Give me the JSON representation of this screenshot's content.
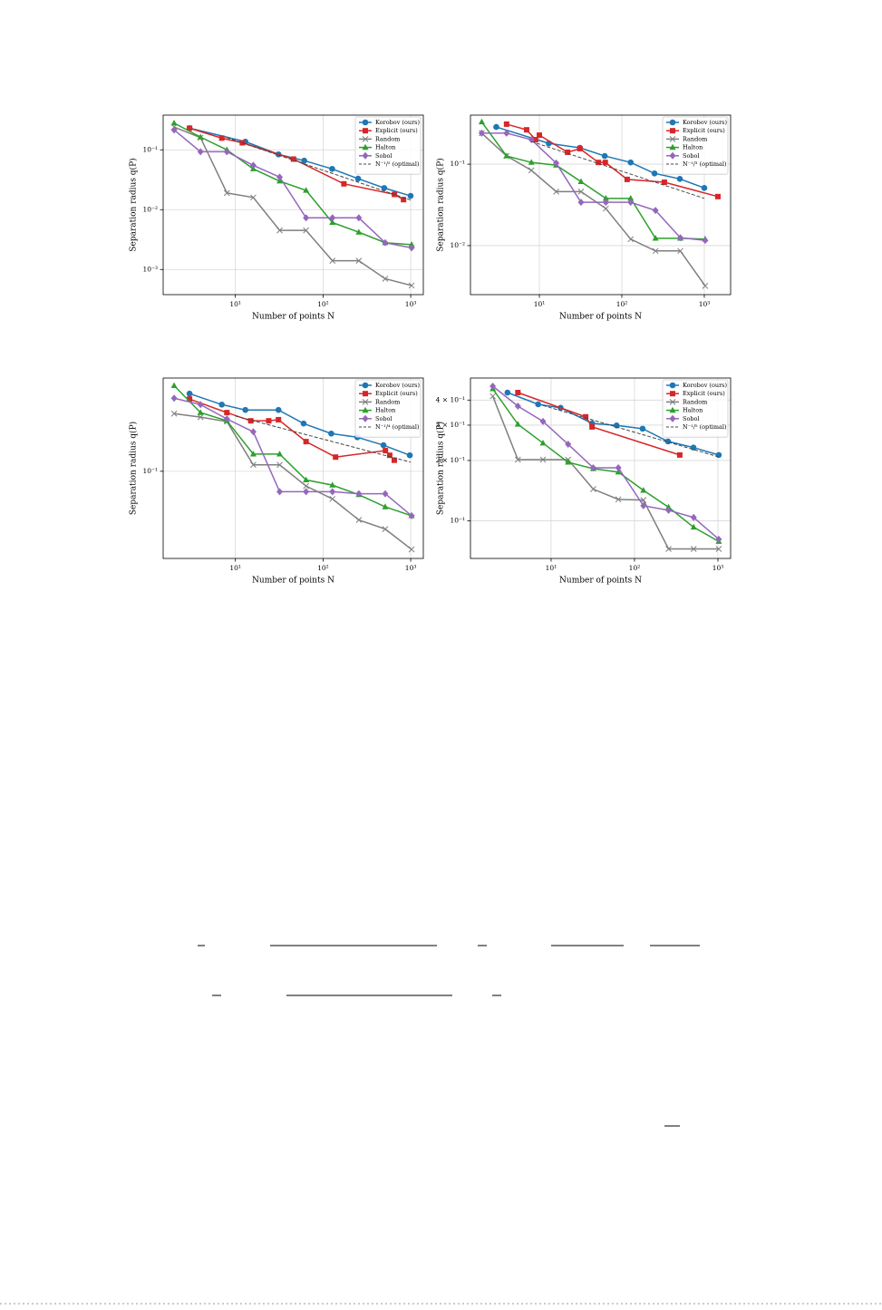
{
  "chart_data": [
    {
      "type": "line",
      "xlabel": "Number of points N",
      "ylabel": "Separation radius q(P)",
      "xscale": "log",
      "yscale": "log",
      "grid": true,
      "legend": "upper right",
      "xlim": [
        1.5,
        1393
      ],
      "ylim": [
        0.00038,
        0.38
      ],
      "xticks": [
        {
          "value": 10,
          "label": "10¹"
        },
        {
          "value": 100,
          "label": "10²"
        },
        {
          "value": 1000,
          "label": "10³"
        }
      ],
      "yticks": [
        {
          "value": 0.1,
          "label": "10⁻¹"
        },
        {
          "value": 0.01,
          "label": "10⁻²"
        },
        {
          "value": 0.001,
          "label": "10⁻³"
        }
      ],
      "series": [
        {
          "name": "Korobov (ours)",
          "color": "#1f77b4",
          "marker": "circle",
          "x": [
            3,
            13,
            31,
            61,
            127,
            251,
            499,
            997
          ],
          "values": [
            0.23,
            0.137,
            0.084,
            0.066,
            0.048,
            0.033,
            0.023,
            0.017
          ]
        },
        {
          "name": "Explicit (ours)",
          "color": "#d62728",
          "marker": "square",
          "x": [
            3,
            7,
            12,
            46,
            173,
            652,
            828
          ],
          "values": [
            0.23,
            0.157,
            0.131,
            0.07,
            0.027,
            0.018,
            0.0147
          ]
        },
        {
          "name": "Random",
          "color": "#7f7f7f",
          "marker": "x",
          "x": [
            2,
            4,
            8,
            16,
            32,
            64,
            128,
            256,
            512,
            1024
          ],
          "values": [
            0.24,
            0.16,
            0.019,
            0.016,
            0.0045,
            0.0045,
            0.0014,
            0.0014,
            0.0007,
            0.00054
          ]
        },
        {
          "name": "Halton",
          "color": "#2ca02c",
          "marker": "triangle",
          "x": [
            2,
            4,
            8,
            16,
            32,
            64,
            128,
            256,
            512,
            1024
          ],
          "values": [
            0.28,
            0.163,
            0.1,
            0.048,
            0.03,
            0.021,
            0.0061,
            0.0042,
            0.0028,
            0.0026
          ]
        },
        {
          "name": "Sobol",
          "color": "#9467bd",
          "marker": "diamond",
          "x": [
            2,
            4,
            8,
            16,
            32,
            64,
            128,
            256,
            512,
            1024
          ],
          "values": [
            0.215,
            0.093,
            0.093,
            0.055,
            0.035,
            0.0073,
            0.0073,
            0.0073,
            0.0028,
            0.0023
          ]
        },
        {
          "name": "N⁻¹/² (optimal)",
          "color": "#444444",
          "dash": true,
          "x": [
            8,
            1000
          ],
          "values": [
            0.16,
            0.0145
          ]
        }
      ]
    },
    {
      "type": "line",
      "xlabel": "Number of points N",
      "ylabel": "Separation radius q(P)",
      "xscale": "log",
      "yscale": "log",
      "grid": true,
      "legend": "upper right",
      "xlim": [
        1.46,
        2085
      ],
      "ylim": [
        0.0025,
        0.4
      ],
      "xticks": [
        {
          "value": 10,
          "label": "10¹"
        },
        {
          "value": 100,
          "label": "10²"
        },
        {
          "value": 1000,
          "label": "10³"
        }
      ],
      "yticks": [
        {
          "value": 0.1,
          "label": "10⁻¹"
        },
        {
          "value": 0.01,
          "label": "10⁻²"
        }
      ],
      "series": [
        {
          "name": "Korobov (ours)",
          "color": "#1f77b4",
          "marker": "circle",
          "x": [
            3,
            13,
            31,
            62,
            128,
            249,
            505,
            1000
          ],
          "values": [
            0.286,
            0.18,
            0.159,
            0.126,
            0.105,
            0.077,
            0.066,
            0.051
          ]
        },
        {
          "name": "Explicit (ours)",
          "color": "#d62728",
          "marker": "square",
          "x": [
            4,
            7,
            9,
            10,
            22,
            31,
            52,
            63,
            116,
            328,
            1462
          ],
          "values": [
            0.31,
            0.264,
            0.2,
            0.227,
            0.14,
            0.155,
            0.105,
            0.105,
            0.065,
            0.06,
            0.04
          ]
        },
        {
          "name": "Random",
          "color": "#7f7f7f",
          "marker": "x",
          "x": [
            2,
            4,
            8,
            16,
            32,
            64,
            128,
            256,
            512,
            1024
          ],
          "values": [
            0.24,
            0.126,
            0.084,
            0.046,
            0.046,
            0.0285,
            0.012,
            0.0086,
            0.0086,
            0.0032
          ]
        },
        {
          "name": "Halton",
          "color": "#2ca02c",
          "marker": "triangle",
          "x": [
            2,
            4,
            8,
            16,
            32,
            64,
            128,
            256,
            512,
            1024
          ],
          "values": [
            0.33,
            0.126,
            0.105,
            0.097,
            0.061,
            0.038,
            0.038,
            0.0123,
            0.0123,
            0.012
          ]
        },
        {
          "name": "Sobol",
          "color": "#9467bd",
          "marker": "diamond",
          "x": [
            2,
            4,
            8,
            16,
            32,
            64,
            128,
            256,
            512,
            1024
          ],
          "values": [
            0.24,
            0.24,
            0.2,
            0.103,
            0.034,
            0.034,
            0.034,
            0.027,
            0.0125,
            0.0116
          ]
        },
        {
          "name": "N⁻¹/³ (optimal)",
          "color": "#444444",
          "dash": true,
          "x": [
            8,
            1000
          ],
          "values": [
            0.19,
            0.038
          ]
        }
      ]
    },
    {
      "type": "line",
      "xlabel": "Number of points N",
      "ylabel": "Separation radius q(P)",
      "xscale": "log",
      "yscale": "log",
      "grid": true,
      "legend": "upper right",
      "xlim": [
        1.5,
        1393
      ],
      "ylim": [
        0.031,
        0.35
      ],
      "xticks": [
        {
          "value": 10,
          "label": "10¹"
        },
        {
          "value": 100,
          "label": "10²"
        },
        {
          "value": 1000,
          "label": "10³"
        }
      ],
      "yticks": [
        {
          "value": 0.1,
          "label": "10⁻¹"
        }
      ],
      "series": [
        {
          "name": "Korobov (ours)",
          "color": "#1f77b4",
          "marker": "circle",
          "x": [
            3,
            7,
            13,
            31,
            60,
            124,
            246,
            489,
            977
          ],
          "values": [
            0.284,
            0.245,
            0.228,
            0.228,
            0.19,
            0.166,
            0.158,
            0.142,
            0.124
          ]
        },
        {
          "name": "Explicit (ours)",
          "color": "#d62728",
          "marker": "square",
          "x": [
            3,
            8,
            15,
            24,
            31,
            64,
            139,
            515,
            576,
            650
          ],
          "values": [
            0.264,
            0.22,
            0.197,
            0.197,
            0.2,
            0.149,
            0.121,
            0.132,
            0.124,
            0.116
          ]
        },
        {
          "name": "Random",
          "color": "#7f7f7f",
          "marker": "x",
          "x": [
            2,
            4,
            8,
            16,
            32,
            64,
            128,
            256,
            512,
            1024
          ],
          "values": [
            0.217,
            0.207,
            0.195,
            0.109,
            0.109,
            0.082,
            0.069,
            0.052,
            0.046,
            0.035
          ]
        },
        {
          "name": "Halton",
          "color": "#2ca02c",
          "marker": "triangle",
          "x": [
            2,
            4,
            8,
            16,
            32,
            64,
            128,
            256,
            512,
            1024
          ],
          "values": [
            0.316,
            0.22,
            0.197,
            0.126,
            0.126,
            0.089,
            0.083,
            0.073,
            0.062,
            0.055
          ]
        },
        {
          "name": "Sobol",
          "color": "#9467bd",
          "marker": "diamond",
          "x": [
            2,
            4,
            8,
            16,
            32,
            64,
            128,
            256,
            512,
            1024
          ],
          "values": [
            0.267,
            0.245,
            0.202,
            0.17,
            0.076,
            0.076,
            0.076,
            0.074,
            0.074,
            0.055
          ]
        },
        {
          "name": "N⁻¹/⁴ (optimal)",
          "color": "#444444",
          "dash": true,
          "x": [
            10,
            1000
          ],
          "values": [
            0.21,
            0.113
          ]
        }
      ]
    },
    {
      "type": "line",
      "xlabel": "Number of points N",
      "ylabel": "Separation radius q(P)",
      "xscale": "log",
      "yscale": "log",
      "grid": true,
      "legend": "upper right",
      "xlim": [
        1.08,
        1420
      ],
      "ylim": [
        0.065,
        0.515
      ],
      "xticks": [
        {
          "value": 10,
          "label": "10¹"
        },
        {
          "value": 100,
          "label": "10²"
        },
        {
          "value": 1000,
          "label": "10³"
        }
      ],
      "yticks": [
        {
          "value": 0.1,
          "label": "10⁻¹"
        },
        {
          "value": 0.2,
          "label": "2 × 10⁻¹"
        },
        {
          "value": 0.3,
          "label": "3 × 10⁻¹"
        },
        {
          "value": 0.4,
          "label": "4 × 10⁻¹"
        }
      ],
      "series": [
        {
          "name": "Korobov (ours)",
          "color": "#1f77b4",
          "marker": "circle",
          "x": [
            3,
            7,
            13,
            31,
            61,
            125,
            252,
            509,
            1024
          ],
          "values": [
            0.436,
            0.381,
            0.366,
            0.306,
            0.299,
            0.288,
            0.249,
            0.232,
            0.213
          ]
        },
        {
          "name": "Explicit (ours)",
          "color": "#d62728",
          "marker": "square",
          "x": [
            4,
            26,
            31,
            349
          ],
          "values": [
            0.436,
            0.33,
            0.294,
            0.213
          ]
        },
        {
          "name": "Random",
          "color": "#7f7f7f",
          "marker": "x",
          "x": [
            2,
            4,
            8,
            16,
            32,
            64,
            128,
            256,
            512,
            1024
          ],
          "values": [
            0.418,
            0.202,
            0.202,
            0.202,
            0.144,
            0.128,
            0.127,
            0.0725,
            0.0725,
            0.0725
          ]
        },
        {
          "name": "Halton",
          "color": "#2ca02c",
          "marker": "triangle",
          "x": [
            2,
            4,
            8,
            16,
            32,
            64,
            128,
            256,
            512,
            1024
          ],
          "values": [
            0.455,
            0.303,
            0.244,
            0.196,
            0.182,
            0.175,
            0.142,
            0.117,
            0.093,
            0.079
          ]
        },
        {
          "name": "Sobol",
          "color": "#9467bd",
          "marker": "diamond",
          "x": [
            2,
            4,
            8,
            16,
            32,
            64,
            128,
            256,
            512,
            1024
          ],
          "values": [
            0.469,
            0.373,
            0.313,
            0.241,
            0.184,
            0.184,
            0.119,
            0.113,
            0.104,
            0.081
          ]
        },
        {
          "name": "N⁻¹/⁵ (optimal)",
          "color": "#444444",
          "dash": true,
          "x": [
            8,
            1000
          ],
          "values": [
            0.376,
            0.209
          ]
        }
      ]
    }
  ]
}
